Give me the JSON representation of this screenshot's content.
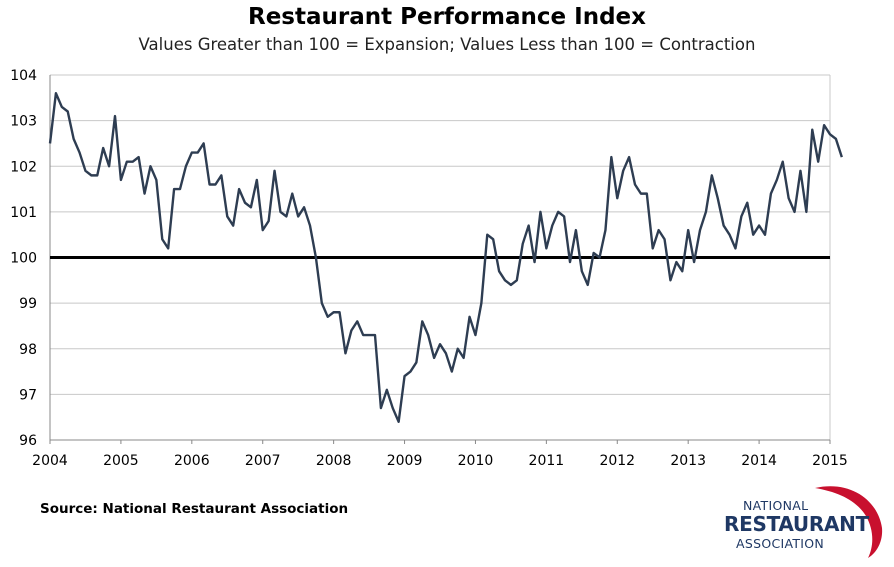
{
  "title": "Restaurant Performance Index",
  "subtitle": "Values Greater than 100 = Expansion; Values Less than 100 = Contraction",
  "source": "Source: National Restaurant Association",
  "logo": {
    "line1": "NATIONAL",
    "line2": "RESTAURANT",
    "line3": "ASSOCIATION",
    "swoosh_color": "#c8102e",
    "text_color": "#1f3864"
  },
  "colors": {
    "line": "#2e3d52",
    "reference_line": "#000000",
    "grid": "#c8c8c8"
  },
  "chart_data": {
    "type": "line",
    "title": "Restaurant Performance Index",
    "subtitle": "Values Greater than 100 = Expansion; Values Less than 100 = Contraction",
    "xlabel": "",
    "ylabel": "",
    "xlim": [
      2004,
      2015
    ],
    "ylim": [
      96,
      104
    ],
    "y_ticks": [
      96,
      97,
      98,
      99,
      100,
      101,
      102,
      103,
      104
    ],
    "x_ticks": [
      2004,
      2005,
      2006,
      2007,
      2008,
      2009,
      2010,
      2011,
      2012,
      2013,
      2014,
      2015
    ],
    "grid": true,
    "reference_line": 100,
    "series": [
      {
        "values": [
          102.5,
          103.6,
          103.3,
          103.2,
          102.6,
          102.3,
          101.9,
          101.8,
          101.8,
          102.4,
          102.0,
          103.1,
          101.7,
          102.1,
          102.1,
          102.2,
          101.4,
          102.0,
          101.7,
          100.4,
          100.2,
          101.5,
          101.5,
          102.0,
          102.3,
          102.3,
          102.5,
          101.6,
          101.6,
          101.8,
          100.9,
          100.7,
          101.5,
          101.2,
          101.1,
          101.7,
          100.6,
          100.8,
          101.9,
          101.0,
          100.9,
          101.4,
          100.9,
          101.1,
          100.7,
          100.0,
          99.0,
          98.7,
          98.8,
          98.8,
          97.9,
          98.4,
          98.6,
          98.3,
          98.3,
          98.3,
          96.7,
          97.1,
          96.7,
          96.4,
          97.4,
          97.5,
          97.7,
          98.6,
          98.3,
          97.8,
          98.1,
          97.9,
          97.5,
          98.0,
          97.8,
          98.7,
          98.3,
          99.0,
          100.5,
          100.4,
          99.7,
          99.5,
          99.4,
          99.5,
          100.3,
          100.7,
          99.9,
          101.0,
          100.2,
          100.7,
          101.0,
          100.9,
          99.9,
          100.6,
          99.7,
          99.4,
          100.1,
          100.0,
          100.6,
          102.2,
          101.3,
          101.9,
          102.2,
          101.6,
          101.4,
          101.4,
          100.2,
          100.6,
          100.4,
          99.5,
          99.9,
          99.7,
          100.6,
          99.9,
          100.6,
          101.0,
          101.8,
          101.3,
          100.7,
          100.5,
          100.2,
          100.9,
          101.2,
          100.5,
          100.7,
          100.5,
          101.4,
          101.7,
          102.1,
          101.3,
          101.0,
          101.9,
          101.0,
          102.8,
          102.1,
          102.9,
          102.7,
          102.6,
          102.2
        ]
      }
    ]
  }
}
